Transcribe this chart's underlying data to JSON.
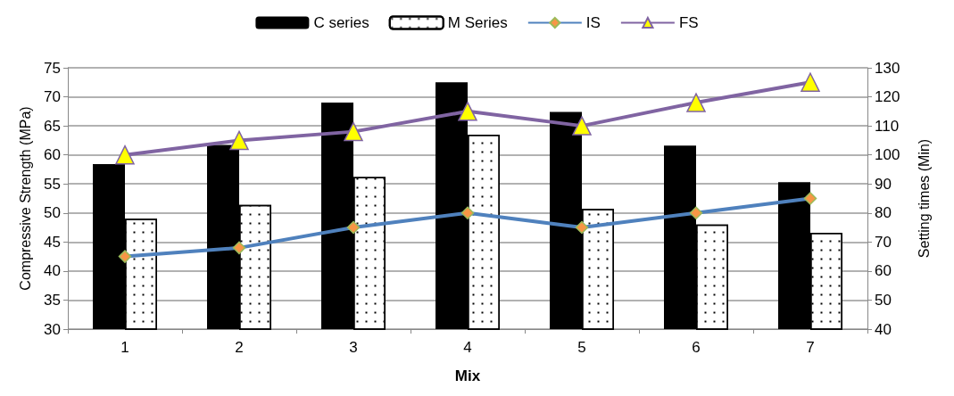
{
  "chart_data": {
    "type": "bar",
    "xlabel": "Mix",
    "ylabel": "Compressive Strength (MPa)",
    "y2label": "Setting times (Min)",
    "categories": [
      "1",
      "2",
      "3",
      "4",
      "5",
      "6",
      "7"
    ],
    "series": [
      {
        "name": "C series",
        "color": "#000000",
        "values": [
          58.4,
          61.7,
          69.0,
          72.5,
          67.4,
          61.6,
          55.3
        ]
      },
      {
        "name": "M Series",
        "color": "#ffffff",
        "values": [
          49.0,
          51.4,
          56.2,
          63.5,
          50.7,
          48.0,
          46.6
        ]
      },
      {
        "name": "IS",
        "type": "line",
        "axis": "y2",
        "color": "#4f81bd",
        "marker": "diamond",
        "values": [
          65,
          68,
          75,
          80,
          75,
          80,
          85
        ]
      },
      {
        "name": "FS",
        "type": "line",
        "axis": "y2",
        "color": "#8064a2",
        "marker": "triangle",
        "values": [
          100,
          105,
          108,
          115,
          110,
          118,
          125
        ]
      }
    ],
    "ylim": [
      30,
      75
    ],
    "yticks": [
      30,
      35,
      40,
      45,
      50,
      55,
      60,
      65,
      70,
      75
    ],
    "y2lim": [
      40,
      130
    ],
    "y2ticks": [
      40,
      50,
      60,
      70,
      80,
      90,
      100,
      110,
      120,
      130
    ],
    "grid": "y",
    "legend": "top"
  }
}
